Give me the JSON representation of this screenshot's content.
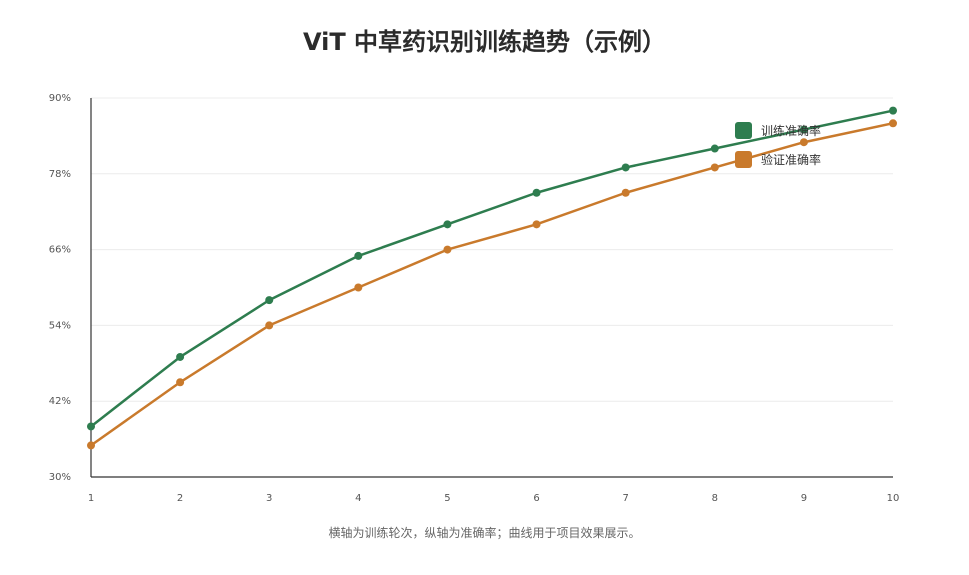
{
  "title": "ViT 中草药识别训练趋势（示例）",
  "caption": "横轴为训练轮次，纵轴为准确率；曲线用于项目效果展示。",
  "chart_data": {
    "type": "line",
    "title": "ViT 中草药识别训练趋势（示例）",
    "xlabel": "",
    "ylabel": "",
    "x": [
      1,
      2,
      3,
      4,
      5,
      6,
      7,
      8,
      9,
      10
    ],
    "xlim": [
      1,
      10
    ],
    "ylim": [
      30,
      90
    ],
    "yticks": [
      30,
      42,
      54,
      66,
      78,
      90
    ],
    "ytick_labels": [
      "30%",
      "42%",
      "54%",
      "66%",
      "78%",
      "90%"
    ],
    "grid": "horizontal",
    "legend_position": "top-right",
    "series": [
      {
        "name": "训练准确率",
        "color": "#2e7d4f",
        "values": [
          38,
          49,
          58,
          65,
          70,
          75,
          79,
          82,
          85,
          88
        ]
      },
      {
        "name": "验证准确率",
        "color": "#c97a2c",
        "values": [
          35,
          45,
          54,
          60,
          66,
          70,
          75,
          79,
          83,
          86
        ]
      }
    ]
  }
}
